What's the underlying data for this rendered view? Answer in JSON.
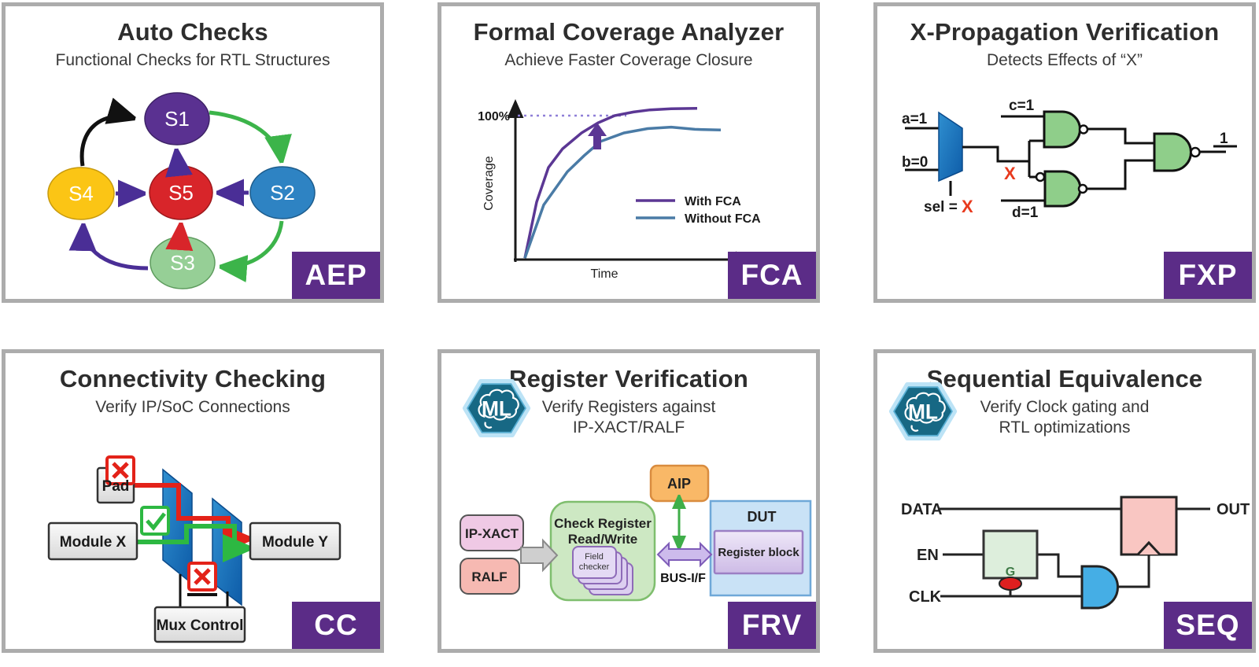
{
  "theme": {
    "badge_bg": "#5B2C87",
    "card_border": "#ACACAC",
    "mux_blue": "#1B6FB5",
    "gate_green": "#8FCE8A",
    "error_red": "#E32219",
    "ok_green": "#2DB842"
  },
  "cards": [
    {
      "id": "aep",
      "title": "Auto Checks",
      "subtitle": "Functional Checks for RTL Structures",
      "badge": "AEP",
      "diagram": {
        "states": [
          {
            "label": "S1",
            "color": "#5A3191"
          },
          {
            "label": "S2",
            "color": "#2E83C3"
          },
          {
            "label": "S3",
            "color": "#96CF96"
          },
          {
            "label": "S4",
            "color": "#FBC515"
          },
          {
            "label": "S5",
            "color": "#D8252A"
          }
        ]
      }
    },
    {
      "id": "fca",
      "title": "Formal Coverage Analyzer",
      "subtitle": "Achieve Faster Coverage Closure",
      "badge": "FCA",
      "chart": {
        "type": "line",
        "xlabel": "Time",
        "ylabel": "Coverage",
        "ytick_labels": [
          "100%"
        ],
        "target_value": 100,
        "xlim": [
          0,
          10
        ],
        "ylim": [
          0,
          110
        ],
        "grid": false,
        "legend_position": "center-right",
        "series": [
          {
            "name": "With FCA",
            "color": "#5B3794",
            "points": [
              [
                0.4,
                1
              ],
              [
                0.9,
                40
              ],
              [
                1.4,
                64
              ],
              [
                2.0,
                77
              ],
              [
                2.8,
                88
              ],
              [
                3.5,
                95
              ],
              [
                4.2,
                100
              ],
              [
                5.0,
                102.5
              ],
              [
                5.7,
                104
              ],
              [
                6.6,
                104.8
              ],
              [
                7.7,
                105
              ]
            ]
          },
          {
            "name": "Without FCA",
            "color": "#4A7BA6",
            "points": [
              [
                0.4,
                1
              ],
              [
                1.2,
                38
              ],
              [
                2.2,
                61
              ],
              [
                2.9,
                72
              ],
              [
                3.6,
                82
              ],
              [
                4.6,
                88
              ],
              [
                5.6,
                91
              ],
              [
                6.6,
                92
              ],
              [
                7.6,
                90.5
              ],
              [
                8.7,
                90
              ]
            ]
          }
        ]
      }
    },
    {
      "id": "fxp",
      "title": "X-Propagation Verification",
      "subtitle": "Detects Effects of “X”",
      "badge": "FXP",
      "labels": {
        "a": "a=1",
        "b": "b=0",
        "sel": "sel =",
        "sel_x": "X",
        "x": "X",
        "c": "c=1",
        "d": "d=1",
        "out": "1"
      }
    },
    {
      "id": "cc",
      "title": "Connectivity Checking",
      "subtitle": "Verify IP/SoC Connections",
      "badge": "CC",
      "labels": {
        "pad": "Pad",
        "module_x": "Module X",
        "module_y": "Module Y",
        "mux_control": "Mux Control"
      }
    },
    {
      "id": "frv",
      "title": "Register Verification",
      "subtitle_line1": "Verify Registers against",
      "subtitle_line2": "IP-XACT/RALF",
      "badge": "FRV",
      "ml_label": "ML",
      "labels": {
        "ip_xact": "IP-XACT",
        "ralf": "RALF",
        "check_register_line1": "Check Register",
        "check_register_line2": "Read/Write",
        "field_checker_line1": "Field",
        "field_checker_line2": "checker",
        "aip": "AIP",
        "bus": "BUS-I/F",
        "dut": "DUT",
        "register_block": "Register block"
      }
    },
    {
      "id": "seq",
      "title": "Sequential Equivalence",
      "subtitle_line1": "Verify Clock gating and",
      "subtitle_line2": "RTL optimizations",
      "badge": "SEQ",
      "ml_label": "ML",
      "labels": {
        "data": "DATA",
        "en": "EN",
        "clk": "CLK",
        "g": "G",
        "out": "OUT"
      }
    }
  ]
}
